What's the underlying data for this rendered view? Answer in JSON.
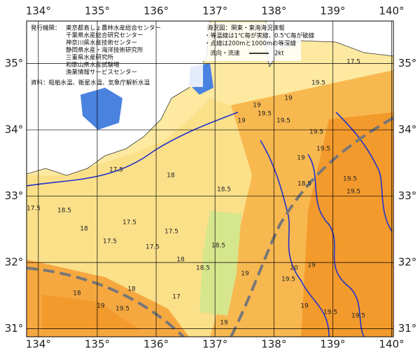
{
  "map": {
    "lon_ticks": [
      {
        "value": 134,
        "label": "134°"
      },
      {
        "value": 135,
        "label": "135°"
      },
      {
        "value": 136,
        "label": "136°"
      },
      {
        "value": 137,
        "label": "137°"
      },
      {
        "value": 138,
        "label": "138°"
      },
      {
        "value": 139,
        "label": "139°"
      },
      {
        "value": 140,
        "label": "140°"
      }
    ],
    "lat_ticks": [
      {
        "value": 35,
        "label": "35°"
      },
      {
        "value": 34,
        "label": "34°"
      },
      {
        "value": 33,
        "label": "33°"
      },
      {
        "value": 32,
        "label": "32°"
      },
      {
        "value": 31,
        "label": "31°"
      }
    ],
    "lon_range": [
      133.8,
      140.03
    ],
    "lat_range": [
      30.88,
      35.64
    ],
    "issuer_heading": "発行機関：",
    "issuers": [
      "東京都島しょ農林水産総合センター",
      "千葉県水産総合研究センター",
      "神奈川県水産技術センター",
      "静岡県水産・海洋技術研究所",
      "三重県水産研究所",
      "和歌山県水産試験場",
      "漁業情報サービスセンター"
    ],
    "source": "資料：船舶水温、衛星水温、気象庁解析水温",
    "notes": [
      "海況図：関東・東海海況速報",
      "・等温線は1℃毎が実線、0.5℃毎が破線",
      "・点線は200mと1000mの等深線"
    ],
    "current_legend": "流向・流速",
    "current_speed": "2kt",
    "contour_labels": [
      "19",
      "19.5",
      "19",
      "19.5",
      "19",
      "19.5",
      "19.5",
      "19.5",
      "19",
      "18.5",
      "18.5",
      "18",
      "17.5",
      "17.5",
      "18.5",
      "18",
      "17.5",
      "17.5",
      "17.5",
      "17.5",
      "18",
      "18.5",
      "18.5",
      "19",
      "19.5",
      "19",
      "19.5",
      "19.5",
      "18",
      "18",
      "19",
      "19.5",
      "17",
      "19",
      "19",
      "19.5",
      "20",
      "19.5",
      "17.5"
    ]
  }
}
